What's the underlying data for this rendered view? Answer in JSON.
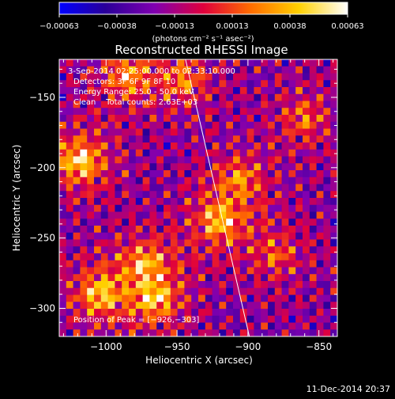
{
  "chart_data": {
    "type": "heatmap",
    "title": "Reconstructed RHESSI Image",
    "xlabel": "Heliocentric X (arcsec)",
    "ylabel": "Heliocentric Y (arcsec)",
    "xlim": [
      -1033,
      -837
    ],
    "ylim": [
      -320,
      -123
    ],
    "x_ticks": [
      -1000,
      -950,
      -900,
      -850
    ],
    "y_ticks": [
      -150,
      -200,
      -250,
      -300
    ],
    "x_tick_labels": [
      "−1000",
      "−950",
      "−900",
      "−850"
    ],
    "y_tick_labels": [
      "−150",
      "−200",
      "−250",
      "−300"
    ],
    "colorbar": {
      "range": [
        -0.00063,
        0.00063
      ],
      "tick_labels": [
        "−0.00063",
        "−0.00038",
        "−0.00013",
        "0.00013",
        "0.00038",
        "0.00063"
      ],
      "units": "(photons cm⁻² s⁻¹ asec⁻²)",
      "colors": [
        "#0000ff",
        "#2a0099",
        "#8000b0",
        "#e0003c",
        "#ff6a00",
        "#ffd000",
        "#ffffff"
      ]
    },
    "annotations": [
      "3-Sep-2014 02:25:00.000 to 02:33:10.000",
      "Detectors: 3F 6F 9F 8F 10",
      "Energy Range: 25.0 - 50.0 keV",
      "Clean    Total counts: 2.63E+03"
    ],
    "peak_label": "Position of Peak = [−926,−303]",
    "limb_line": [
      [
        -944,
        -123
      ],
      [
        -899,
        -320
      ]
    ],
    "hotspots": [
      {
        "x": -1018,
        "y": -195,
        "intensity": 1.0
      },
      {
        "x": -1005,
        "y": -290,
        "intensity": 0.85
      },
      {
        "x": -965,
        "y": -293,
        "intensity": 0.8
      },
      {
        "x": -972,
        "y": -268,
        "intensity": 0.7
      },
      {
        "x": -985,
        "y": -135,
        "intensity": 0.75
      },
      {
        "x": -945,
        "y": -138,
        "intensity": 0.6
      },
      {
        "x": -920,
        "y": -238,
        "intensity": 0.85
      },
      {
        "x": -905,
        "y": -208,
        "intensity": 0.6
      },
      {
        "x": -860,
        "y": -165,
        "intensity": 0.55
      },
      {
        "x": -880,
        "y": -262,
        "intensity": 0.5
      }
    ]
  },
  "footer": {
    "timestamp": "11-Dec-2014 20:37"
  }
}
